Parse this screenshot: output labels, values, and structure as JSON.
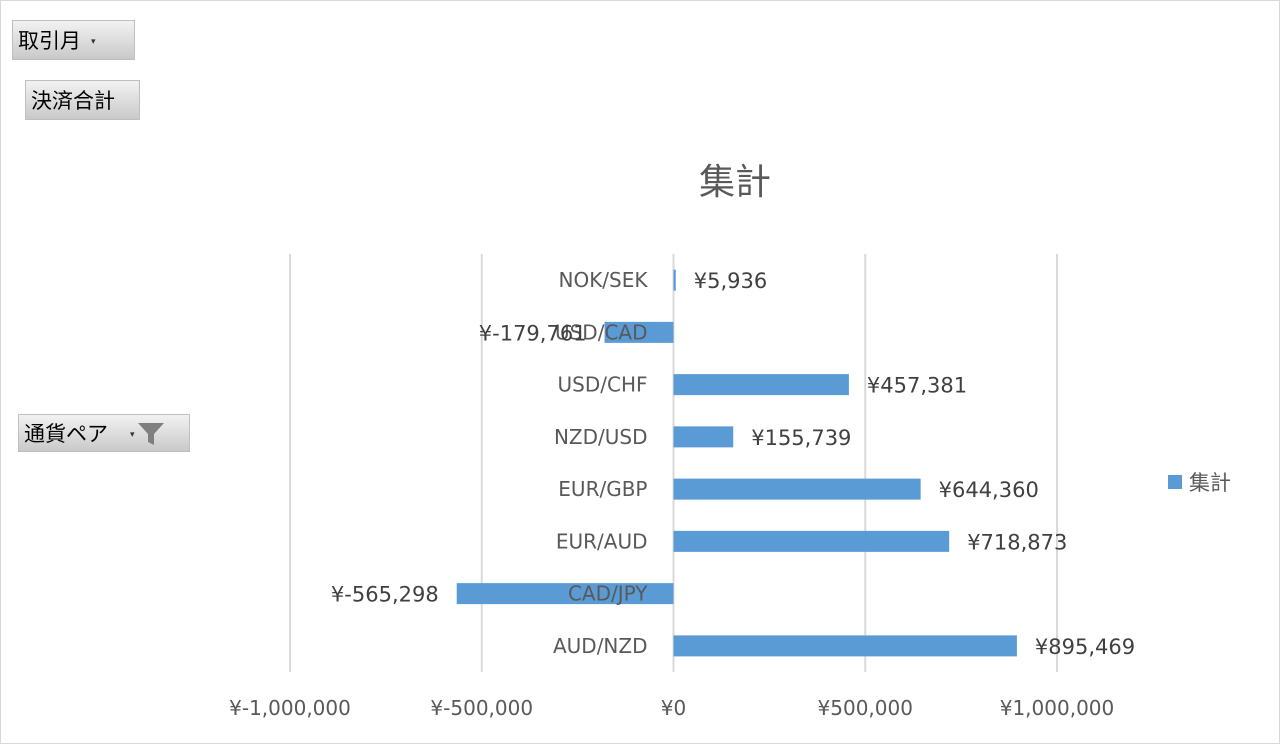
{
  "filters": {
    "month": {
      "label": "取引月",
      "icon": "dropdown-arrow-icon"
    },
    "sum": {
      "label": "決済合計"
    },
    "pair": {
      "label": "通貨ペア",
      "icon": "filter-icon"
    }
  },
  "chart_data": {
    "type": "bar",
    "orientation": "horizontal",
    "title": "集計",
    "categories": [
      "NOK/SEK",
      "USD/CAD",
      "USD/CHF",
      "NZD/USD",
      "EUR/GBP",
      "EUR/AUD",
      "CAD/JPY",
      "AUD/NZD"
    ],
    "series": [
      {
        "name": "集計",
        "values": [
          5936,
          -179761,
          457381,
          155739,
          644360,
          718873,
          -565298,
          895469
        ],
        "data_labels": [
          "¥5,936",
          "¥-179,761",
          "¥457,381",
          "¥155,739",
          "¥644,360",
          "¥718,873",
          "¥-565,298",
          "¥895,469"
        ],
        "color": "#5b9bd5"
      }
    ],
    "x_ticks": [
      -1000000,
      -500000,
      0,
      500000,
      1000000
    ],
    "x_tick_labels": [
      "¥-1,000,000",
      "¥-500,000",
      "¥0",
      "¥500,000",
      "¥1,000,000"
    ],
    "xlim": [
      -1000000,
      1000000
    ],
    "grid": true,
    "legend": "right",
    "colors": {
      "bar": "#5b9bd5",
      "grid": "#d9d9d9"
    }
  }
}
